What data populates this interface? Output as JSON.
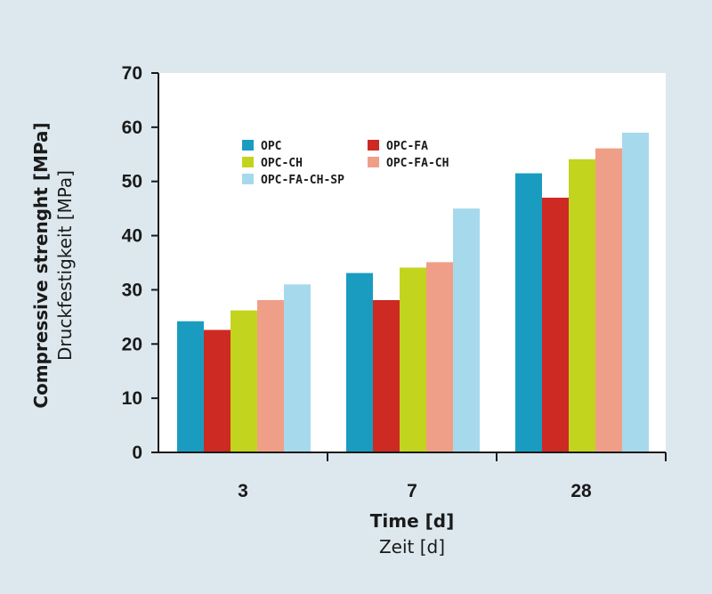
{
  "chart_data": {
    "type": "bar",
    "categories": [
      "3",
      "7",
      "28"
    ],
    "series": [
      {
        "name": "OPC",
        "color": "#1a9cc0",
        "values": [
          24.2,
          33.1,
          51.5
        ]
      },
      {
        "name": "OPC-FA",
        "color": "#cc2a22",
        "values": [
          22.6,
          28.1,
          47.0
        ]
      },
      {
        "name": "OPC-CH",
        "color": "#c3d41e",
        "values": [
          26.2,
          34.1,
          54.1
        ]
      },
      {
        "name": "OPC-FA-CH",
        "color": "#ef9f87",
        "values": [
          28.1,
          35.1,
          56.1
        ]
      },
      {
        "name": "OPC-FA-CH-SP",
        "color": "#a7d9ec",
        "values": [
          31.0,
          45.0,
          59.0
        ]
      }
    ],
    "ylim": [
      0,
      70
    ],
    "yticks": [
      "0",
      "10",
      "20",
      "30",
      "40",
      "50",
      "60",
      "70"
    ],
    "xlabel": "Time [d]",
    "xlabel_sub": "Zeit [d]",
    "ylabel": "Compressive strenght [MPa]",
    "ylabel_sub": "Druckfestigkeit [MPa]",
    "legend_position": "upper-left",
    "grid": false
  }
}
